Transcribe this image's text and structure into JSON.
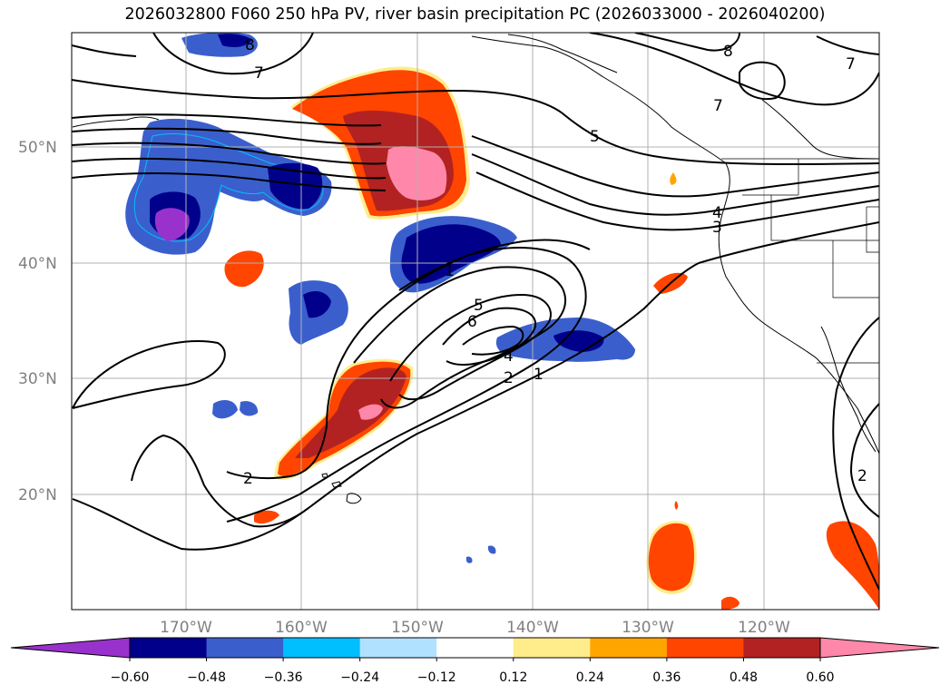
{
  "title": "2026032800 F060 250 hPa PV, river basin precipitation PC (2026033000 - 2026040200)",
  "lat_labels": [
    "50°N",
    "40°N",
    "30°N",
    "20°N"
  ],
  "lon_labels": [
    "170°W",
    "160°W",
    "150°W",
    "140°W",
    "130°W",
    "120°W"
  ],
  "pv_contour_labels": [
    "8",
    "8",
    "7",
    "7",
    "7",
    "5",
    "4",
    "3",
    "1",
    "5",
    "6",
    "4",
    "2",
    "1",
    "2",
    "2"
  ],
  "colorbar": {
    "ticks": [
      "−0.60",
      "−0.48",
      "−0.36",
      "−0.24",
      "−0.12",
      "0.12",
      "0.24",
      "0.36",
      "0.48",
      "0.60"
    ],
    "colors": [
      "#9932cc",
      "#00008b",
      "#3a5fcd",
      "#00bfff",
      "#b0e2ff",
      "#ffffff",
      "#ffec8b",
      "#ffa500",
      "#ff4500",
      "#b22222",
      "#ff88aa"
    ]
  },
  "colors": {
    "gridline": "#b0b0b0",
    "coastline": "#000000",
    "contour": "#000000"
  }
}
